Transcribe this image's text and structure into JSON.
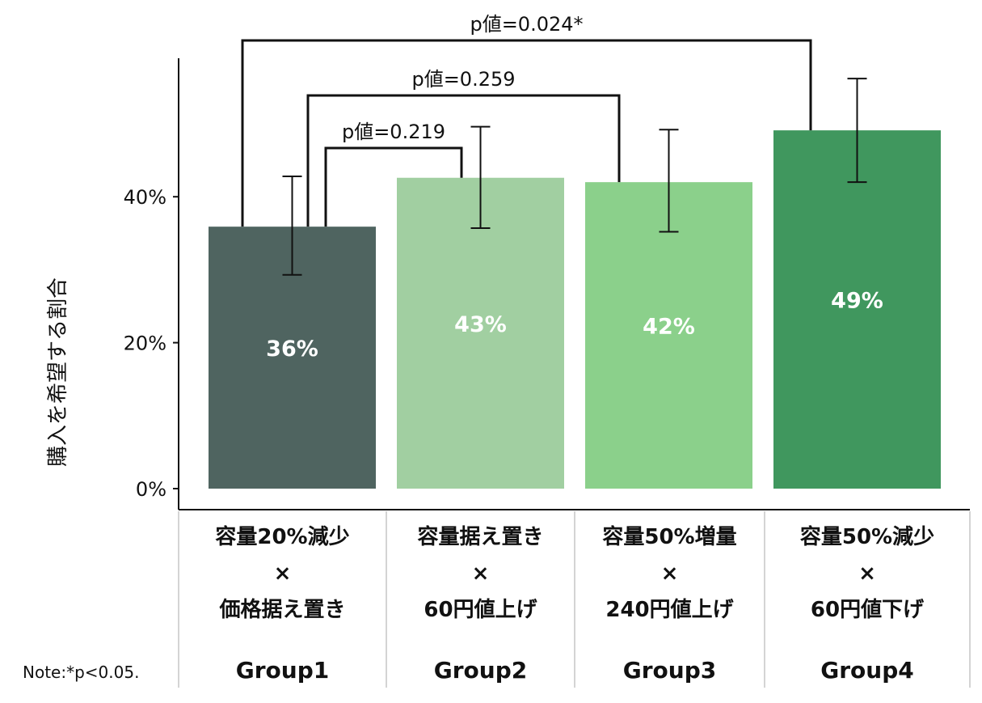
{
  "chart_data": {
    "type": "bar",
    "title": "",
    "xlabel": "",
    "ylabel": "購入を希望する割合",
    "ylim": [
      0,
      58
    ],
    "yticks": [
      0,
      20,
      40
    ],
    "ytick_labels": [
      "0%",
      "20%",
      "40%"
    ],
    "grid": false,
    "categories": [
      {
        "lines": [
          "容量20%減少",
          "×",
          "価格据え置き"
        ],
        "group": "Group1"
      },
      {
        "lines": [
          "容量据え置き",
          "×",
          "60円値上げ"
        ],
        "group": "Group2"
      },
      {
        "lines": [
          "容量50%増量",
          "×",
          "240円値上げ"
        ],
        "group": "Group3"
      },
      {
        "lines": [
          "容量50%減少",
          "×",
          "60円値下げ"
        ],
        "group": "Group4"
      }
    ],
    "values": [
      35.9,
      42.6,
      42.0,
      49.1
    ],
    "data_labels": [
      "36%",
      "43%",
      "42%",
      "49%"
    ],
    "error_bars": [
      [
        29.3,
        42.8
      ],
      [
        35.7,
        49.6
      ],
      [
        35.2,
        49.2
      ],
      [
        42.0,
        56.2
      ]
    ],
    "colors": [
      "#4f6460",
      "#a1cfa1",
      "#8bd08b",
      "#40975e"
    ],
    "comparisons": [
      {
        "from": 0,
        "to": 3,
        "label": "p値=0.024*"
      },
      {
        "from": 0,
        "to": 2,
        "label": "p値=0.259"
      },
      {
        "from": 0,
        "to": 1,
        "label": "p値=0.219"
      }
    ],
    "note": "Note:*p<0.05."
  }
}
